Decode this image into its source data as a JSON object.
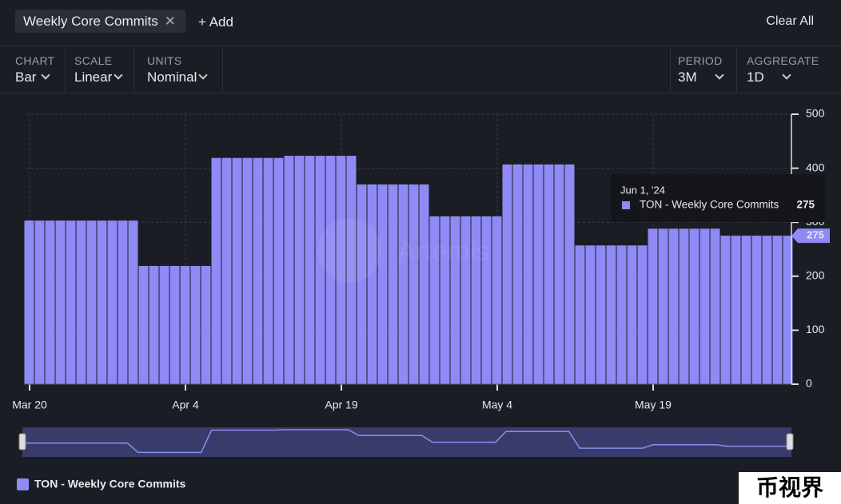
{
  "toolbar": {
    "tag": "Weekly Core Commits",
    "add": "+ Add",
    "clear": "Clear All"
  },
  "controls": [
    {
      "label": "CHART",
      "value": "Bar"
    },
    {
      "label": "SCALE",
      "value": "Linear"
    },
    {
      "label": "UNITS",
      "value": "Nominal"
    },
    {
      "label": "PERIOD",
      "value": "3M"
    },
    {
      "label": "AGGREGATE",
      "value": "1D"
    }
  ],
  "watermark": "Artemis",
  "corner_mark": "币视界",
  "tooltip": {
    "date": "Jun 1, '24"
  },
  "chart_data": {
    "type": "bar",
    "categories": [
      "Mar 20",
      null,
      null,
      null,
      null,
      null,
      null,
      null,
      null,
      null,
      null,
      null,
      null,
      null,
      null,
      "Apr 4",
      null,
      null,
      null,
      null,
      null,
      null,
      null,
      null,
      null,
      null,
      null,
      null,
      null,
      null,
      "Apr 19",
      null,
      null,
      null,
      null,
      null,
      null,
      null,
      null,
      null,
      null,
      null,
      null,
      null,
      null,
      "May 4",
      null,
      null,
      null,
      null,
      null,
      null,
      null,
      null,
      null,
      null,
      null,
      null,
      null,
      null,
      "May 19",
      null,
      null,
      null,
      null,
      null,
      null,
      null,
      null,
      null,
      null,
      null,
      null,
      null
    ],
    "series": [
      {
        "name": "TON - Weekly Core Commits",
        "color": "#8f8af5",
        "values": [
          303,
          303,
          303,
          303,
          303,
          303,
          303,
          303,
          303,
          303,
          303,
          219,
          219,
          219,
          219,
          219,
          219,
          219,
          419,
          419,
          419,
          419,
          419,
          419,
          419,
          423,
          423,
          423,
          423,
          423,
          423,
          423,
          370,
          370,
          370,
          370,
          370,
          370,
          370,
          311,
          311,
          311,
          311,
          311,
          311,
          311,
          407,
          407,
          407,
          407,
          407,
          407,
          407,
          257,
          257,
          257,
          257,
          257,
          257,
          257,
          288,
          288,
          288,
          288,
          288,
          288,
          288,
          275,
          275,
          275,
          275,
          275,
          275,
          275
        ]
      }
    ],
    "ylim": [
      0,
      500
    ],
    "yticks": [
      0,
      100,
      200,
      300,
      400,
      500
    ],
    "grid": true
  }
}
